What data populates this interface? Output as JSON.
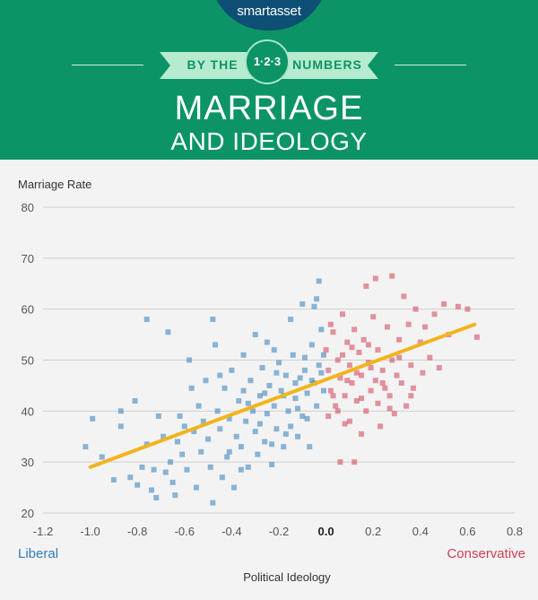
{
  "header": {
    "brand": "smartasset",
    "ribbon_left": "BY THE",
    "ribbon_badge": "1·2·3",
    "ribbon_right": "NUMBERS",
    "title_line1": "MARRIAGE",
    "title_line2": "AND IDEOLOGY"
  },
  "colors": {
    "header_bg": "#0c9466",
    "logo_bg": "#0d4f75",
    "liberal": "#2f7db8",
    "conservative": "#cf3f55",
    "trend": "#f2b41c"
  },
  "chart_data": {
    "type": "scatter",
    "title": "",
    "xlabel": "Political Ideology",
    "ylabel": "Marriage Rate",
    "xlim": [
      -1.2,
      0.8
    ],
    "ylim": [
      20,
      80
    ],
    "x_ticks": [
      "-1.2",
      "-1.0",
      "-0.8",
      "-0.6",
      "-0.4",
      "-0.2",
      "0.0",
      "0.2",
      "0.4",
      "0.6",
      "0.8"
    ],
    "y_ticks": [
      "20",
      "30",
      "40",
      "50",
      "60",
      "70",
      "80"
    ],
    "grid": "horizontal",
    "left_annotation": "Liberal",
    "right_annotation": "Conservative",
    "trendline": {
      "x": [
        -1.0,
        0.63
      ],
      "y": [
        29,
        57
      ]
    },
    "series": [
      {
        "points": [
          [
            -1.02,
            33
          ],
          [
            -0.99,
            38.5
          ],
          [
            -0.95,
            31
          ],
          [
            -0.9,
            26.5
          ],
          [
            -0.87,
            40
          ],
          [
            -0.87,
            37
          ],
          [
            -0.83,
            27
          ],
          [
            -0.81,
            42
          ],
          [
            -0.8,
            25.5
          ],
          [
            -0.78,
            29
          ],
          [
            -0.76,
            33.5
          ],
          [
            -0.76,
            58
          ],
          [
            -0.74,
            24.5
          ],
          [
            -0.73,
            28.5
          ],
          [
            -0.72,
            23
          ],
          [
            -0.71,
            39
          ],
          [
            -0.69,
            35
          ],
          [
            -0.68,
            28
          ],
          [
            -0.67,
            55.5
          ],
          [
            -0.66,
            30
          ],
          [
            -0.65,
            26
          ],
          [
            -0.64,
            23.5
          ],
          [
            -0.63,
            34
          ],
          [
            -0.62,
            39
          ],
          [
            -0.61,
            31.5
          ],
          [
            -0.6,
            37
          ],
          [
            -0.59,
            28.5
          ],
          [
            -0.58,
            50
          ],
          [
            -0.57,
            44.5
          ],
          [
            -0.56,
            36
          ],
          [
            -0.55,
            25
          ],
          [
            -0.54,
            41
          ],
          [
            -0.53,
            32
          ],
          [
            -0.52,
            38
          ],
          [
            -0.51,
            46
          ],
          [
            -0.5,
            34.5
          ],
          [
            -0.49,
            29
          ],
          [
            -0.48,
            58
          ],
          [
            -0.48,
            22
          ],
          [
            -0.47,
            53
          ],
          [
            -0.46,
            40
          ],
          [
            -0.45,
            36.5
          ],
          [
            -0.44,
            27
          ],
          [
            -0.43,
            44.5
          ],
          [
            -0.42,
            31
          ],
          [
            -0.41,
            38.5
          ],
          [
            -0.4,
            48
          ],
          [
            -0.39,
            25
          ],
          [
            -0.38,
            35
          ],
          [
            -0.37,
            42
          ],
          [
            -0.36,
            33
          ],
          [
            -0.35,
            51
          ],
          [
            -0.34,
            38
          ],
          [
            -0.33,
            29
          ],
          [
            -0.32,
            46
          ],
          [
            -0.31,
            40
          ],
          [
            -0.3,
            36
          ],
          [
            -0.3,
            55
          ],
          [
            -0.29,
            31.5
          ],
          [
            -0.28,
            43
          ],
          [
            -0.27,
            48.5
          ],
          [
            -0.26,
            34
          ],
          [
            -0.25,
            39.5
          ],
          [
            -0.24,
            45
          ],
          [
            -0.23,
            29.5
          ],
          [
            -0.22,
            52
          ],
          [
            -0.22,
            41
          ],
          [
            -0.21,
            36.5
          ],
          [
            -0.2,
            49.5
          ],
          [
            -0.19,
            44
          ],
          [
            -0.18,
            33
          ],
          [
            -0.17,
            47
          ],
          [
            -0.16,
            40
          ],
          [
            -0.15,
            37
          ],
          [
            -0.14,
            51
          ],
          [
            -0.13,
            42.5
          ],
          [
            -0.12,
            35
          ],
          [
            -0.11,
            46.5
          ],
          [
            -0.1,
            39
          ],
          [
            -0.09,
            48
          ],
          [
            -0.08,
            43.5
          ],
          [
            -0.07,
            33
          ],
          [
            -0.06,
            53
          ],
          [
            -0.05,
            45.5
          ],
          [
            -0.04,
            41
          ],
          [
            -0.03,
            49
          ],
          [
            -0.02,
            56
          ],
          [
            -0.01,
            44
          ],
          [
            -0.05,
            60.5
          ],
          [
            -0.04,
            62
          ],
          [
            -0.03,
            65.5
          ],
          [
            -0.1,
            61
          ],
          [
            -0.15,
            58
          ],
          [
            -0.25,
            53.5
          ],
          [
            -0.35,
            44
          ],
          [
            -0.45,
            47
          ],
          [
            -0.28,
            37.5
          ],
          [
            -0.18,
            43
          ],
          [
            -0.08,
            38.5
          ],
          [
            -0.13,
            45.5
          ],
          [
            -0.21,
            47.5
          ],
          [
            -0.33,
            41.5
          ],
          [
            -0.02,
            47.5
          ],
          [
            -0.06,
            46
          ],
          [
            -0.01,
            51
          ],
          [
            -0.09,
            50.5
          ],
          [
            -0.26,
            43.5
          ],
          [
            -0.41,
            32
          ],
          [
            -0.36,
            28.5
          ],
          [
            -0.23,
            33.5
          ],
          [
            -0.12,
            40.5
          ],
          [
            -0.17,
            35.5
          ]
        ]
      },
      {
        "points": [
          [
            0.0,
            52
          ],
          [
            0.01,
            48
          ],
          [
            0.02,
            44
          ],
          [
            0.03,
            55.5
          ],
          [
            0.04,
            41
          ],
          [
            0.05,
            50
          ],
          [
            0.06,
            46.5
          ],
          [
            0.07,
            59
          ],
          [
            0.08,
            43
          ],
          [
            0.09,
            53.5
          ],
          [
            0.1,
            38
          ],
          [
            0.1,
            49
          ],
          [
            0.11,
            45.5
          ],
          [
            0.12,
            56
          ],
          [
            0.13,
            42
          ],
          [
            0.14,
            51.5
          ],
          [
            0.15,
            35.5
          ],
          [
            0.15,
            47
          ],
          [
            0.16,
            54
          ],
          [
            0.17,
            40
          ],
          [
            0.18,
            49.5
          ],
          [
            0.19,
            44
          ],
          [
            0.2,
            58.5
          ],
          [
            0.21,
            46
          ],
          [
            0.22,
            41.5
          ],
          [
            0.22,
            52
          ],
          [
            0.23,
            37
          ],
          [
            0.24,
            48
          ],
          [
            0.25,
            44.5
          ],
          [
            0.26,
            56.5
          ],
          [
            0.27,
            43
          ],
          [
            0.28,
            50
          ],
          [
            0.29,
            39.5
          ],
          [
            0.3,
            47
          ],
          [
            0.31,
            54
          ],
          [
            0.32,
            45.5
          ],
          [
            0.33,
            62.5
          ],
          [
            0.34,
            41
          ],
          [
            0.35,
            57
          ],
          [
            0.36,
            49
          ],
          [
            0.37,
            44.5
          ],
          [
            0.38,
            60
          ],
          [
            0.4,
            53.5
          ],
          [
            0.41,
            47.5
          ],
          [
            0.42,
            56.5
          ],
          [
            0.44,
            50.5
          ],
          [
            0.46,
            59
          ],
          [
            0.48,
            48.5
          ],
          [
            0.5,
            61
          ],
          [
            0.52,
            55
          ],
          [
            0.56,
            60.5
          ],
          [
            0.6,
            60
          ],
          [
            0.64,
            54.5
          ],
          [
            0.12,
            30
          ],
          [
            0.06,
            30
          ],
          [
            0.21,
            66
          ],
          [
            0.28,
            66.5
          ],
          [
            0.17,
            64.5
          ],
          [
            0.08,
            37.5
          ],
          [
            0.02,
            57
          ],
          [
            0.05,
            40
          ],
          [
            0.13,
            47.5
          ],
          [
            0.18,
            53
          ],
          [
            0.09,
            46
          ],
          [
            0.24,
            45.5
          ],
          [
            0.31,
            50.5
          ],
          [
            0.36,
            43
          ],
          [
            0.27,
            40.5
          ],
          [
            0.15,
            42.5
          ],
          [
            0.03,
            43
          ],
          [
            0.01,
            39
          ],
          [
            0.11,
            52.5
          ],
          [
            0.19,
            48.5
          ],
          [
            0.07,
            51
          ]
        ]
      }
    ]
  }
}
